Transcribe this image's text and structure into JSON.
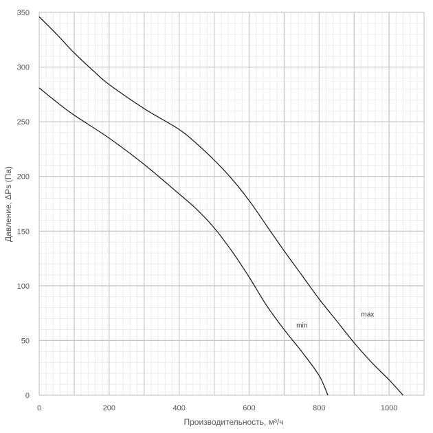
{
  "chart_data": {
    "type": "line",
    "title": "",
    "xlabel": "Производительность, м³/ч",
    "ylabel": "Давление, ΔPs (Па)",
    "xlim": [
      0,
      1100
    ],
    "ylim": [
      0,
      350
    ],
    "x_ticks": [
      "0",
      "200",
      "400",
      "600",
      "800",
      "1000"
    ],
    "y_ticks": [
      "0",
      "50",
      "100",
      "150",
      "200",
      "250",
      "300",
      "350"
    ],
    "grid": true,
    "legend": "none",
    "series": [
      {
        "name": "max",
        "points": [
          [
            0,
            346
          ],
          [
            50,
            330
          ],
          [
            100,
            313
          ],
          [
            160,
            295
          ],
          [
            200,
            284
          ],
          [
            300,
            262
          ],
          [
            400,
            243
          ],
          [
            450,
            230
          ],
          [
            500,
            215
          ],
          [
            550,
            198
          ],
          [
            600,
            178
          ],
          [
            650,
            155
          ],
          [
            700,
            132
          ],
          [
            750,
            110
          ],
          [
            800,
            88
          ],
          [
            850,
            68
          ],
          [
            900,
            48
          ],
          [
            950,
            30
          ],
          [
            1000,
            14
          ],
          [
            1040,
            0
          ]
        ],
        "label_at": [
          920,
          72
        ]
      },
      {
        "name": "min",
        "points": [
          [
            0,
            281
          ],
          [
            50,
            268
          ],
          [
            100,
            256
          ],
          [
            200,
            235
          ],
          [
            300,
            211
          ],
          [
            400,
            184
          ],
          [
            450,
            170
          ],
          [
            500,
            153
          ],
          [
            550,
            132
          ],
          [
            600,
            108
          ],
          [
            650,
            82
          ],
          [
            700,
            60
          ],
          [
            750,
            40
          ],
          [
            800,
            18
          ],
          [
            825,
            0
          ]
        ],
        "label_at": [
          735,
          62
        ]
      }
    ]
  }
}
